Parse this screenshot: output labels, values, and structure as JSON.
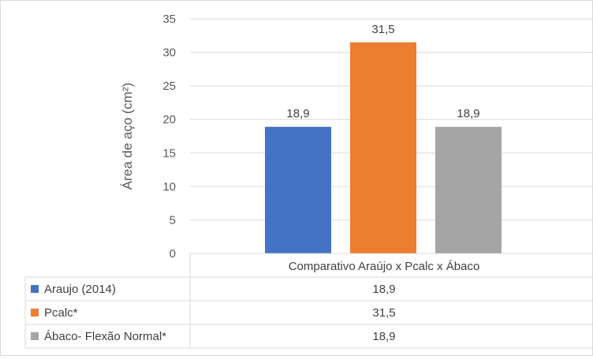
{
  "chart_data": {
    "type": "bar",
    "categories": [
      "Comparativo Araújo x Pcalc x Ábaco"
    ],
    "series": [
      {
        "name": "Araujo (2014)",
        "values": [
          18.9
        ],
        "label": "18,9",
        "color": "#4472c4"
      },
      {
        "name": "Pcalc*",
        "values": [
          31.5
        ],
        "label": "31,5",
        "color": "#ed7d31"
      },
      {
        "name": "Ábaco- Flexão Normal*",
        "values": [
          18.9
        ],
        "label": "18,9",
        "color": "#a5a5a5"
      }
    ],
    "ylabel": "Área de aço (cm²)",
    "xlabel": "",
    "ylim": [
      0,
      35
    ],
    "yticks": [
      "0",
      "5",
      "10",
      "15",
      "20",
      "25",
      "30",
      "35"
    ],
    "grid": true,
    "legend": "data-table"
  }
}
